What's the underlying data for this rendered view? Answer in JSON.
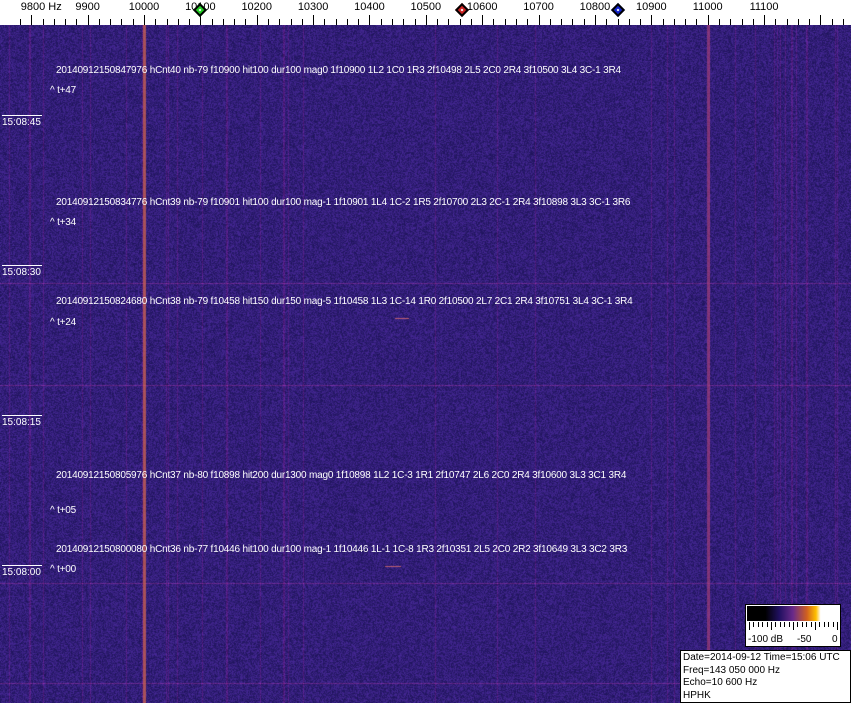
{
  "chart_data": {
    "type": "heatmap",
    "xlabel_unit": "Hz",
    "x_ticks": [
      "9800 Hz",
      "9900",
      "10000",
      "10100",
      "10200",
      "10300",
      "10400",
      "10500",
      "10600",
      "10700",
      "10800",
      "10900",
      "11000",
      "11100"
    ],
    "x_tick_values": [
      9800,
      9900,
      10000,
      10100,
      10200,
      10300,
      10400,
      10500,
      10600,
      10700,
      10800,
      10900,
      11000,
      11100
    ],
    "xlim": [
      9780,
      11250
    ],
    "markers": [
      {
        "color": "#22cc22",
        "freq": 10100
      },
      {
        "color": "#cc2222",
        "freq": 10565
      },
      {
        "color": "#1122cc",
        "freq": 10840
      }
    ],
    "time_labels": [
      "15:08:45",
      "15:08:30",
      "15:08:15",
      "15:08:00"
    ],
    "strong_lines_hz": [
      10000,
      11000
    ],
    "colorscale": {
      "labels": [
        "-100 dB",
        "-50",
        "0"
      ],
      "range_db": [
        -100,
        0
      ]
    },
    "annotations": [
      {
        "text": "20140912150847976 hCnt40 nb-79 f10900 hit100 dur100 mag0 1f10900 1L2 1C0 1R3 2f10498 2L5 2C0 2R4 3f10500 3L4 3C-1 3R4",
        "offset": "^ t+47"
      },
      {
        "text": "20140912150834776 hCnt39 nb-79 f10901 hit100 dur100 mag-1 1f10901 1L4 1C-2 1R5 2f10700 2L3 2C-1 2R4 3f10898 3L3 3C-1 3R6",
        "offset": "^ t+34"
      },
      {
        "text": "20140912150824680 hCnt38 nb-79 f10458 hit150 dur150 mag-5 1f10458 1L3 1C-14 1R0 2f10500 2L7 2C1 2R4 3f10751 3L4 3C-1 3R4",
        "offset": "^ t+24"
      },
      {
        "text": "20140912150805976 hCnt37 nb-80 f10898 hit200 dur1300 mag0 1f10898 1L2 1C-3 1R1 2f10747 2L6 2C0 2R4 3f10600 3L3 3C1 3R4",
        "offset": "^ t+05"
      },
      {
        "text": "20140912150800080 hCnt36 nb-77 f10446 hit100 dur100 mag-1 1f10446 1L-1 1C-8 1R3 2f10351 2L5 2C0 2R2 3f10649 3L3 3C2 3R3",
        "offset": "^ t+00"
      }
    ]
  },
  "info": {
    "date_time": "Date=2014-09-12 Time=15:06 UTC",
    "freq": "Freq=143 050 000 Hz",
    "echo": "Echo=10 600 Hz",
    "station": "HPHK"
  },
  "colors": {
    "background": "#2a1c72",
    "accent_line": "#c05a50"
  }
}
